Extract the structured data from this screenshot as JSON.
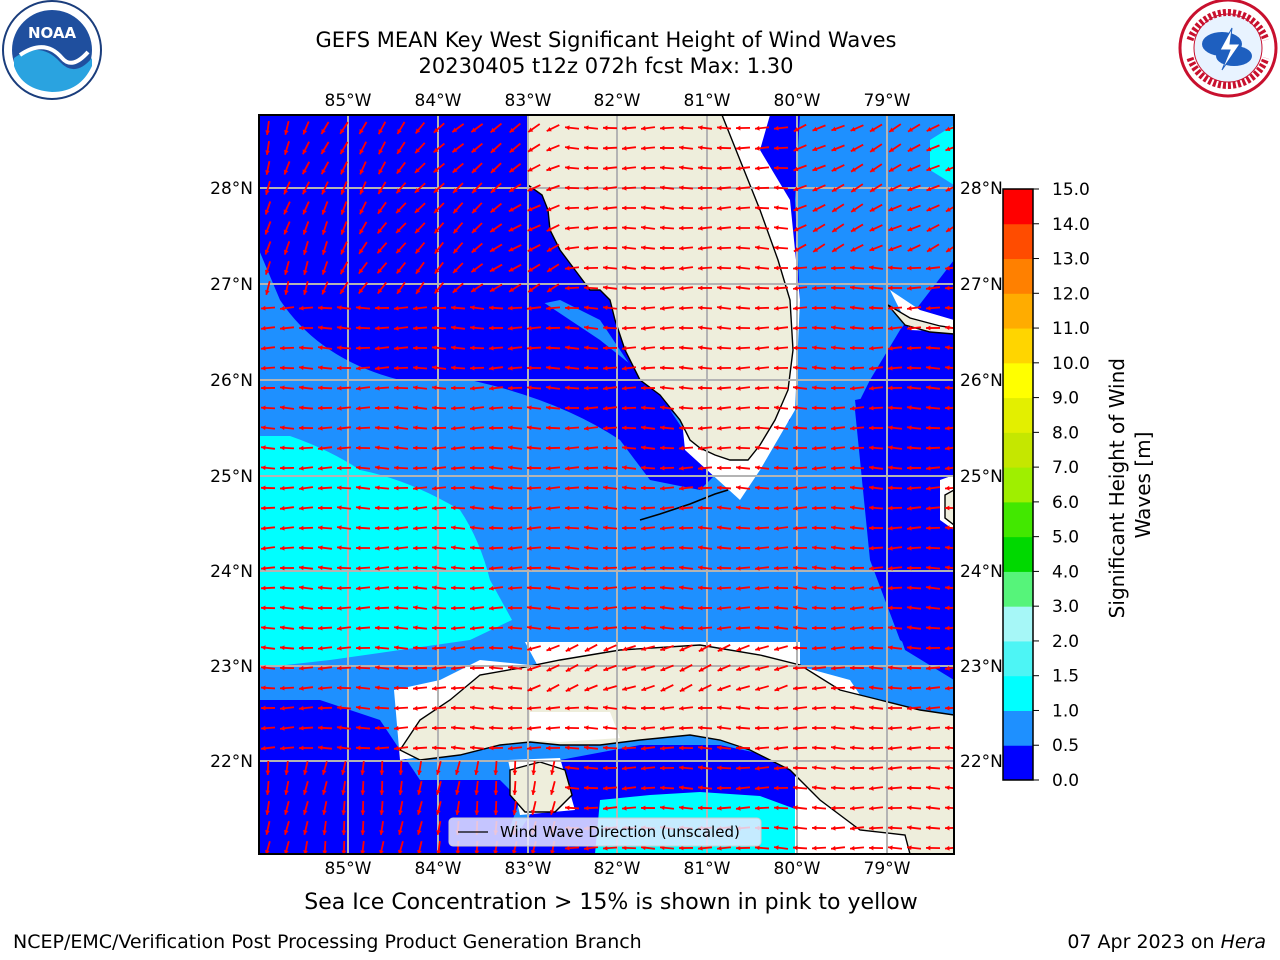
{
  "header": {
    "title_line1": "GEFS MEAN Key West Significant Height of Wind Waves",
    "title_line2": "20230405 t12z 072h fcst   Max: 1.30"
  },
  "logos": {
    "left": {
      "icon": "noaa-logo",
      "word": "NOAA"
    },
    "right": {
      "icon": "nws-logo"
    }
  },
  "map": {
    "lon_ticks": [
      "85°W",
      "84°W",
      "83°W",
      "82°W",
      "81°W",
      "80°W",
      "79°W"
    ],
    "lat_ticks": [
      "28°N",
      "27°N",
      "26°N",
      "25°N",
      "24°N",
      "23°N",
      "22°N"
    ],
    "legend_label": "Wind Wave Direction (unscaled)",
    "colors": {
      "band_0_05": "#0000ff",
      "band_05_10": "#1e90ff",
      "band_10_15": "#00ffff",
      "land": "#eeeedc",
      "arrow": "#ff0000",
      "grid": "#b4b4b4"
    }
  },
  "colorbar": {
    "label": "Significant Height of Wind Waves [m]",
    "levels": [
      "0.0",
      "0.5",
      "1.0",
      "1.5",
      "2.0",
      "3.0",
      "4.0",
      "5.0",
      "6.0",
      "7.0",
      "8.0",
      "9.0",
      "10.0",
      "11.0",
      "12.0",
      "13.0",
      "14.0",
      "15.0"
    ],
    "colors": [
      "#0000ff",
      "#1e90ff",
      "#00ffff",
      "#4df5f5",
      "#a6f7f7",
      "#56f47a",
      "#00d900",
      "#42e800",
      "#9fef00",
      "#c5e700",
      "#e3ef00",
      "#ffff00",
      "#ffd500",
      "#ffac00",
      "#ff8000",
      "#ff4c00",
      "#ff0000"
    ]
  },
  "caption": "Sea Ice Concentration > 15% is shown in pink to yellow",
  "footer": {
    "left": "NCEP/EMC/Verification Post Processing Product Generation Branch",
    "right_date": "07 Apr 2023 on ",
    "right_host": "Hera"
  }
}
